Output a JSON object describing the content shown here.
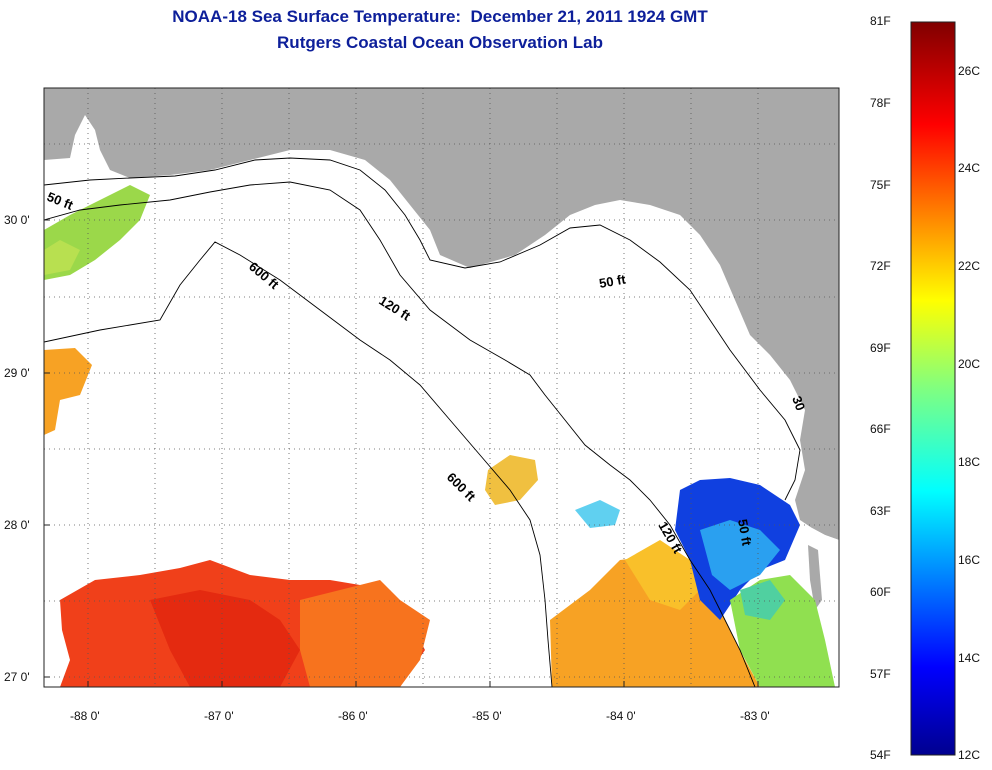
{
  "title": {
    "line1": "NOAA-18 Sea Surface Temperature:  December 21, 2011 1924 GMT",
    "line2": "Rutgers Coastal Ocean Observation Lab"
  },
  "axes": {
    "x_ticks": [
      "-88 0'",
      "-87 0'",
      "-86 0'",
      "-85 0'",
      "-84 0'",
      "-83 0'"
    ],
    "y_ticks": [
      "30 0'",
      "29 0'",
      "28 0'",
      "27 0'"
    ]
  },
  "contours": {
    "c50_west": "50 ft",
    "c50_east": "50 ft",
    "c50_south": "50 ft",
    "c120_north": "120 ft",
    "c120_south": "120 ft",
    "c600_north": "600 ft",
    "c600_south": "600 ft",
    "c30": "30"
  },
  "colorbar": {
    "fahrenheit": [
      "81F",
      "78F",
      "75F",
      "72F",
      "69F",
      "66F",
      "63F",
      "60F",
      "57F",
      "54F"
    ],
    "celsius": [
      "26C",
      "24C",
      "22C",
      "20C",
      "18C",
      "16C",
      "14C",
      "12C"
    ]
  },
  "colors": {
    "land": "#a9a9a9",
    "title": "#0d1f9a",
    "warm": "#f03a10",
    "mid": "#f9a020",
    "cool": "#8fd44c",
    "cold": "#0b2fd8"
  }
}
